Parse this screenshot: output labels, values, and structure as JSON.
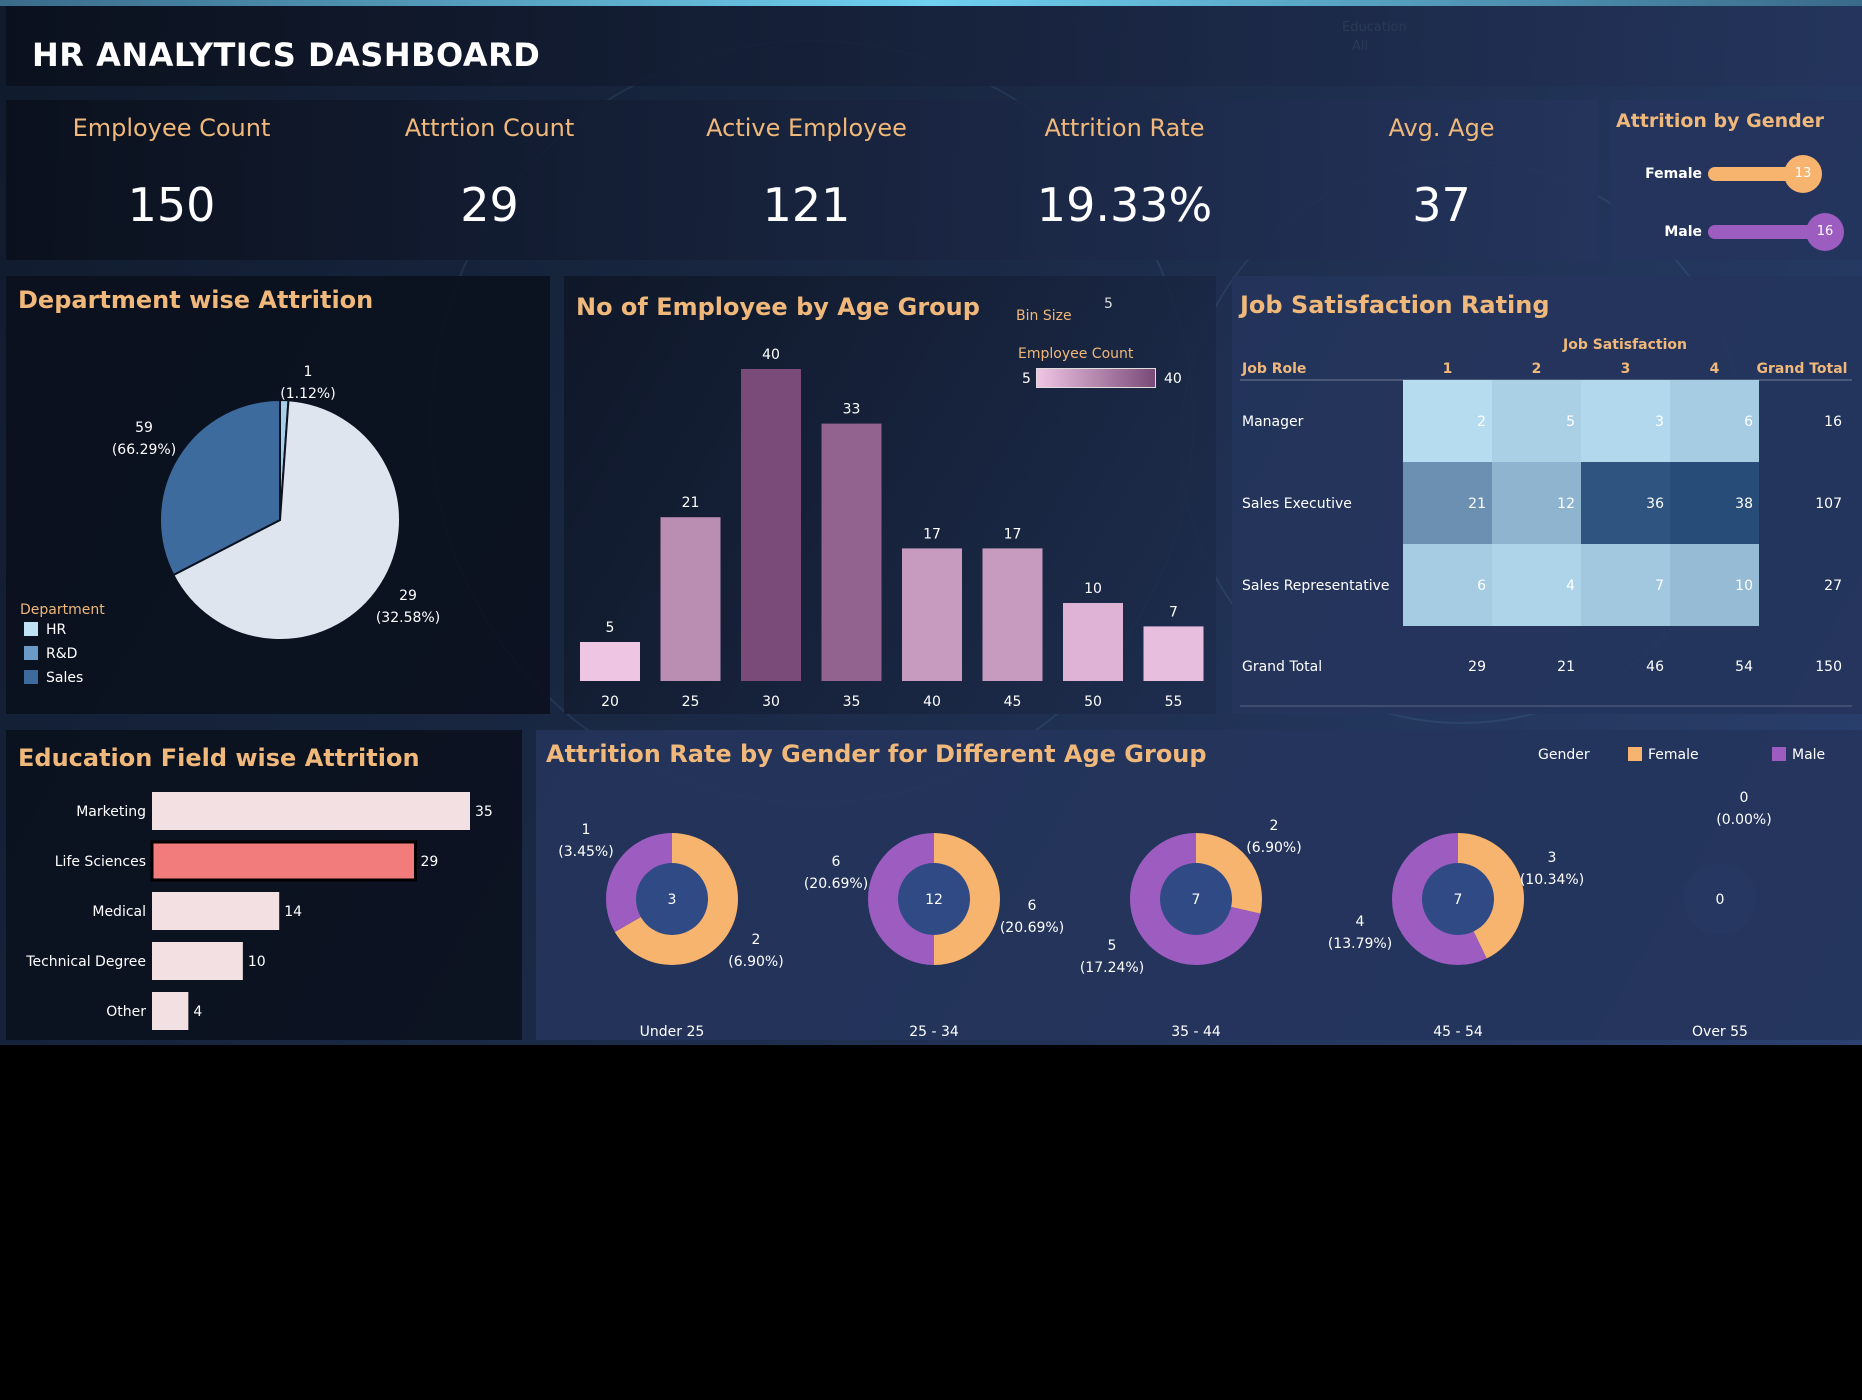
{
  "header": {
    "title": "HR ANALYTICS DASHBOARD",
    "filter_label": "Education",
    "filter_value": "All"
  },
  "kpis": [
    {
      "label": "Employee Count",
      "value": "150"
    },
    {
      "label": "Attrtion Count",
      "value": "29"
    },
    {
      "label": "Active Employee",
      "value": "121"
    },
    {
      "label": "Attrition Rate",
      "value": "19.33%"
    },
    {
      "label": "Avg. Age",
      "value": "37"
    }
  ],
  "gender_panel": {
    "title": "Attrition by Gender",
    "female_label": "Female",
    "male_label": "Male",
    "female_value": "13",
    "male_value": "16",
    "female_color": "#f7b46e",
    "male_color": "#9c5cc0"
  },
  "department": {
    "title": "Department wise Attrition",
    "legend_title": "Department"
  },
  "age_panel": {
    "title": "No of Employee by Age Group",
    "bin_size_label": "Bin Size",
    "bin_size_value": "5",
    "legend_title": "Employee Count",
    "legend_min": "5",
    "legend_max": "40"
  },
  "job_satisfaction": {
    "title": "Job Satisfaction Rating",
    "col_group": "Job Satisfaction",
    "row_header": "Job Role",
    "columns": [
      "1",
      "2",
      "3",
      "4"
    ],
    "grand_total_label": "Grand Total",
    "rows": [
      {
        "role": "Manager",
        "values": [
          "2",
          "5",
          "3",
          "6"
        ],
        "total": "16"
      },
      {
        "role": "Sales Executive",
        "values": [
          "21",
          "12",
          "36",
          "38"
        ],
        "total": "107"
      },
      {
        "role": "Sales Representative",
        "values": [
          "6",
          "4",
          "7",
          "10"
        ],
        "total": "27"
      }
    ],
    "totals_row": {
      "role": "Grand Total",
      "values": [
        "29",
        "21",
        "46",
        "54"
      ],
      "total": "150"
    }
  },
  "education": {
    "title": "Education Field wise Attrition"
  },
  "gender_age": {
    "title": "Attrition Rate by Gender for Different Age Group",
    "legend_title": "Gender"
  },
  "chart_data": [
    {
      "type": "pie",
      "labels": [
        "HR",
        "R&D",
        "Sales"
      ],
      "values": [
        1,
        29,
        59
      ],
      "value_labels": [
        "1",
        "29",
        "59"
      ],
      "percent_labels": [
        "(1.12%)",
        "(32.58%)",
        "(66.29%)"
      ],
      "colors": [
        "#a9cfe8",
        "#3d6b9e",
        "#dfe5ef"
      ],
      "legend_colors": [
        "#bfe2f5",
        "#6a9ac8",
        "#3d6b9e"
      ]
    },
    {
      "type": "bar",
      "categories": [
        "20",
        "25",
        "30",
        "35",
        "40",
        "45",
        "50",
        "55"
      ],
      "values": [
        5,
        21,
        40,
        33,
        17,
        17,
        10,
        7
      ],
      "ylim": [
        0,
        40
      ],
      "color_range": [
        "#efc5e4",
        "#7a4a78"
      ]
    },
    {
      "type": "heatmap",
      "rows": [
        "Manager",
        "Sales Executive",
        "Sales Representative"
      ],
      "columns": [
        "1",
        "2",
        "3",
        "4"
      ],
      "values": [
        [
          2,
          5,
          3,
          6
        ],
        [
          21,
          12,
          36,
          38
        ],
        [
          6,
          4,
          7,
          10
        ]
      ],
      "color_range": [
        "#b6dcf0",
        "#274c78"
      ]
    },
    {
      "type": "bar",
      "orientation": "horizontal",
      "categories": [
        "Marketing",
        "Life Sciences",
        "Medical",
        "Technical Degree",
        "Other"
      ],
      "values": [
        35,
        29,
        14,
        10,
        4
      ],
      "colors": [
        "#f3e0e2",
        "#f27b7b",
        "#f3e0e2",
        "#f3e0e2",
        "#f3e0e2"
      ]
    },
    {
      "type": "pie",
      "subtype": "donut",
      "categories": [
        "Under 25",
        "25 - 34",
        "35 - 44",
        "45 - 54",
        "Over 55"
      ],
      "series": [
        {
          "name": "Female",
          "values": [
            2,
            6,
            2,
            3,
            0
          ],
          "labels": [
            "2",
            "6",
            "2",
            "3",
            "0"
          ],
          "percents": [
            "(6.90%)",
            "(20.69%)",
            "(6.90%)",
            "(10.34%)",
            "(0.00%)"
          ],
          "color": "#f7b46e"
        },
        {
          "name": "Male",
          "values": [
            1,
            6,
            5,
            4,
            0
          ],
          "labels": [
            "1",
            "6",
            "5",
            "4",
            ""
          ],
          "percents": [
            "(3.45%)",
            "(20.69%)",
            "(17.24%)",
            "(13.79%)",
            ""
          ],
          "color": "#9c5cc0"
        }
      ],
      "center_labels": [
        "3",
        "12",
        "7",
        "7",
        "0"
      ]
    }
  ]
}
